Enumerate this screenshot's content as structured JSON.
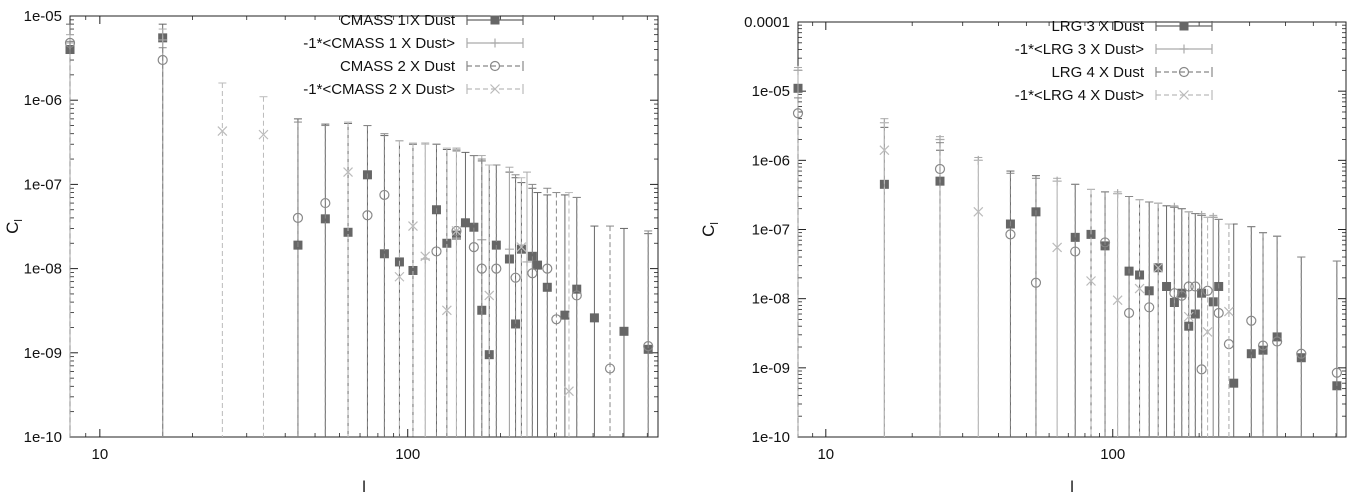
{
  "chart_data": [
    {
      "type": "scatter",
      "xscale": "log",
      "yscale": "log",
      "xlim": [
        8,
        650
      ],
      "ylim": [
        1e-10,
        1e-05
      ],
      "xlabel": "l",
      "ylabel": "C",
      "ylabel_sub": "l",
      "xticks": [
        10,
        100
      ],
      "xtick_labels": [
        "10",
        "100"
      ],
      "yticks": [
        1e-10,
        1e-09,
        1e-08,
        1e-07,
        1e-06,
        1e-05
      ],
      "ytick_labels": [
        "1e-10",
        "1e-09",
        "1e-08",
        "1e-07",
        "1e-06",
        "1e-05"
      ],
      "grid": false,
      "legend_position": "top-right",
      "series": [
        {
          "name": "CMASS 1 X Dust",
          "marker": "square",
          "line": "solid",
          "color": "#666666",
          "x": [
            8,
            16,
            44,
            54,
            64,
            74,
            84,
            94,
            104,
            124,
            134,
            144,
            154,
            164,
            174,
            184,
            194,
            214,
            224,
            234,
            254,
            264,
            284,
            324,
            354,
            404,
            504,
            604
          ],
          "y": [
            4e-06,
            5.5e-06,
            1.9e-08,
            3.9e-08,
            2.7e-08,
            1.3e-07,
            1.5e-08,
            1.2e-08,
            9.5e-09,
            5e-08,
            2e-08,
            2.5e-08,
            3.5e-08,
            3.1e-08,
            3.2e-09,
            9.5e-10,
            1.9e-08,
            1.3e-08,
            2.2e-09,
            1.7e-08,
            1.4e-08,
            1.1e-08,
            6e-09,
            2.8e-09,
            5.7e-09,
            2.6e-09,
            1.8e-09,
            1.1e-09
          ],
          "yerr_upper": [
            8e-06,
            8e-06,
            6e-07,
            5.2e-07,
            5.3e-07,
            5e-07,
            3.8e-07,
            3.3e-07,
            3e-07,
            3e-07,
            2.6e-07,
            2.5e-07,
            2.4e-07,
            2.2e-07,
            1.9e-07,
            1.7e-07,
            1.7e-07,
            1.4e-07,
            1.2e-07,
            1.05e-07,
            9e-08,
            8e-08,
            7.5e-08,
            7.5e-08,
            7e-08,
            3.2e-08,
            3e-08,
            2.6e-08
          ]
        },
        {
          "name": "-1*<CMASS 1 X Dust>",
          "marker": "plus",
          "line": "solid",
          "color": "#aaaaaa",
          "x": [
            8,
            16,
            114,
            144,
            174,
            214,
            244
          ],
          "y": [
            4.8e-06,
            5.2e-06,
            1.3e-08,
            2.3e-08,
            2.2e-08,
            1.7e-08,
            1.2e-08
          ],
          "yerr_upper": [
            6e-06,
            7e-06,
            3.1e-07,
            2.7e-07,
            2.2e-07,
            1.6e-07,
            1.4e-07
          ]
        },
        {
          "name": "CMASS 2 X Dust",
          "marker": "circle",
          "line": "dashed",
          "color": "#888888",
          "x": [
            8,
            16,
            44,
            54,
            74,
            84,
            124,
            144,
            164,
            174,
            194,
            224,
            254,
            284,
            304,
            354,
            454,
            604
          ],
          "y": [
            4.8e-06,
            3e-06,
            4e-08,
            6e-08,
            4.3e-08,
            7.5e-08,
            1.6e-08,
            2.8e-08,
            1.8e-08,
            1e-08,
            1e-08,
            7.8e-09,
            8.8e-09,
            1e-08,
            2.5e-09,
            4.8e-09,
            6.5e-10,
            1.2e-09
          ],
          "yerr_upper": [
            5e-06,
            4.2e-06,
            5.5e-07,
            5e-07,
            5e-07,
            4e-07,
            3e-07,
            2.6e-07,
            2.2e-07,
            2e-07,
            1.7e-07,
            1.3e-07,
            1e-07,
            9e-08,
            8e-08,
            7e-08,
            3.2e-08,
            2.8e-08
          ]
        },
        {
          "name": "-1*<CMASS 2 X Dust>",
          "marker": "cross",
          "line": "dashed",
          "color": "#bbbbbb",
          "x": [
            25,
            34,
            64,
            94,
            104,
            114,
            134,
            144,
            184,
            234,
            334
          ],
          "y": [
            4.3e-07,
            3.9e-07,
            1.4e-07,
            8e-09,
            3.2e-08,
            1.4e-08,
            3.2e-09,
            2.8e-08,
            4.8e-09,
            1.8e-08,
            3.5e-10
          ],
          "yerr_upper": [
            1.6e-06,
            1.1e-06,
            5.5e-07,
            3.3e-07,
            3.1e-07,
            3e-07,
            2.7e-07,
            2.6e-07,
            1.7e-07,
            1.2e-07,
            8e-08
          ]
        }
      ]
    },
    {
      "type": "scatter",
      "xscale": "log",
      "yscale": "log",
      "xlim": [
        8,
        650
      ],
      "ylim": [
        1e-10,
        0.0001
      ],
      "xlabel": "l",
      "ylabel": "C",
      "ylabel_sub": "l",
      "xticks": [
        10,
        100
      ],
      "xtick_labels": [
        "10",
        "100"
      ],
      "yticks": [
        1e-10,
        1e-09,
        1e-08,
        1e-07,
        1e-06,
        1e-05,
        0.0001
      ],
      "ytick_labels": [
        "1e-10",
        "1e-09",
        "1e-08",
        "1e-07",
        "1e-06",
        "1e-05",
        "0.0001"
      ],
      "grid": false,
      "legend_position": "top-right",
      "series": [
        {
          "name": "LRG 3 X Dust",
          "marker": "square",
          "line": "solid",
          "color": "#666666",
          "x": [
            8,
            16,
            25,
            44,
            54,
            74,
            84,
            94,
            114,
            124,
            134,
            144,
            154,
            164,
            174,
            184,
            194,
            204,
            224,
            234,
            264,
            304,
            334,
            374,
            454,
            604
          ],
          "y": [
            1.1e-05,
            4.5e-07,
            5e-07,
            1.2e-07,
            1.8e-07,
            7.7e-08,
            8.5e-08,
            5.8e-08,
            2.5e-08,
            2.2e-08,
            1.3e-08,
            2.8e-08,
            1.5e-08,
            8.8e-09,
            1.2e-08,
            4e-09,
            6e-09,
            1.2e-08,
            9e-09,
            1.5e-08,
            6e-10,
            1.6e-09,
            1.8e-09,
            2.8e-09,
            1.4e-09,
            5.5e-10
          ],
          "yerr_upper": [
            2e-05,
            3e-06,
            1.4e-06,
            7e-07,
            6e-07,
            4.5e-07,
            3.8e-07,
            3.5e-07,
            3e-07,
            2.7e-07,
            2.5e-07,
            2.4e-07,
            2.2e-07,
            2.1e-07,
            2e-07,
            1.8e-07,
            1.7e-07,
            1.6e-07,
            1.5e-07,
            1.4e-07,
            1.2e-07,
            1.1e-07,
            9e-08,
            8e-08,
            4e-08,
            3.5e-08
          ]
        },
        {
          "name": "-1*<LRG 3 X Dust>",
          "marker": "plus",
          "line": "solid",
          "color": "#aaaaaa",
          "x": [
            8,
            16,
            25,
            34,
            64,
            104,
            164,
            204,
            224
          ],
          "y": [
            2e-05,
            3.5e-06,
            2e-06,
            1e-06,
            5e-07,
            3.3e-07,
            2.1e-07,
            1.6e-07,
            1.5e-07
          ],
          "yerr_upper": [
            2.2e-05,
            4e-06,
            2.2e-06,
            1.1e-06,
            5.5e-07,
            3.5e-07,
            2.2e-07,
            1.7e-07,
            1.6e-07
          ]
        },
        {
          "name": "LRG 4 X Dust",
          "marker": "circle",
          "line": "dashed",
          "color": "#888888",
          "x": [
            8,
            25,
            44,
            54,
            74,
            94,
            114,
            134,
            164,
            174,
            184,
            194,
            204,
            214,
            234,
            254,
            304,
            334,
            374,
            454,
            604
          ],
          "y": [
            4.8e-06,
            7.5e-07,
            8.5e-08,
            1.7e-08,
            4.8e-08,
            6.5e-08,
            6.2e-09,
            7.5e-09,
            1.2e-08,
            1.1e-08,
            1.5e-08,
            1.5e-08,
            9.5e-10,
            1.3e-08,
            6.2e-09,
            2.2e-09,
            4.8e-09,
            2.1e-09,
            2.4e-09,
            1.6e-09,
            8.5e-10
          ],
          "yerr_upper": [
            8e-06,
            1.8e-06,
            6.5e-07,
            5.5e-07,
            4.5e-07,
            3.5e-07,
            3e-07,
            2.5e-07,
            2.1e-07,
            2e-07,
            1.8e-07,
            1.7e-07,
            1.6e-07,
            1.5e-07,
            1.4e-07,
            1.2e-07,
            1.1e-07,
            9e-08,
            8e-08,
            4e-08,
            3.5e-08
          ]
        },
        {
          "name": "-1*<LRG 4 X Dust>",
          "marker": "cross",
          "line": "dashed",
          "color": "#bbbbbb",
          "x": [
            16,
            34,
            64,
            84,
            104,
            124,
            144,
            184,
            214,
            254
          ],
          "y": [
            1.4e-06,
            1.8e-07,
            5.5e-08,
            1.8e-08,
            9.5e-09,
            1.4e-08,
            2.8e-08,
            5.5e-09,
            3.3e-09,
            6.5e-09
          ],
          "yerr_upper": [
            3.5e-06,
            1e-06,
            5e-07,
            3.8e-07,
            3.3e-07,
            2.7e-07,
            2.4e-07,
            1.8e-07,
            1.5e-07,
            1.2e-07
          ]
        }
      ]
    }
  ]
}
